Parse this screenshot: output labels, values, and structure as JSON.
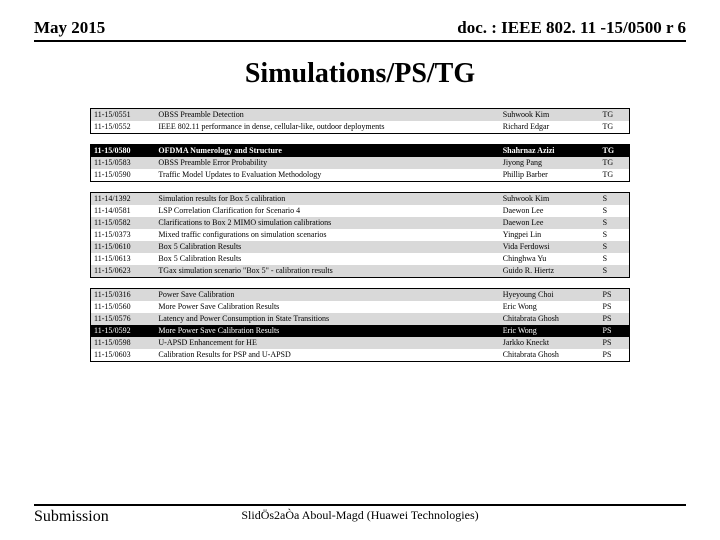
{
  "header": {
    "left": "May 2015",
    "right": "doc. : IEEE 802. 11 -15/0500 r 6"
  },
  "title": "Simulations/PS/TG",
  "footer": {
    "left": "Submission",
    "center": "SlidÖs2aÒa Aboul-Magd (Huawei Technologies)",
    "right": ""
  },
  "rowStyles": {
    "gray": {
      "bg": "#d9d9d9",
      "color": "#000000",
      "weight": "normal"
    },
    "white": {
      "bg": "#ffffff",
      "color": "#000000",
      "weight": "normal"
    },
    "blackBold": {
      "bg": "#000000",
      "color": "#ffffff",
      "weight": "bold"
    },
    "black": {
      "bg": "#000000",
      "color": "#ffffff",
      "weight": "normal"
    }
  },
  "tables": [
    {
      "rows": [
        {
          "style": "gray",
          "cells": [
            "11-15/0551",
            "OBSS Preamble Detection",
            "Suhwook Kim",
            "TG"
          ]
        },
        {
          "style": "white",
          "cells": [
            "11-15/0552",
            "IEEE 802.11 performance in dense, cellular-like, outdoor deployments",
            "Richard Edgar",
            "TG"
          ]
        }
      ]
    },
    {
      "rows": [
        {
          "style": "blackBold",
          "cells": [
            "11-15/0580",
            "OFDMA Numerology and Structure",
            "Shahrnaz Azizi",
            "TG"
          ]
        },
        {
          "style": "gray",
          "cells": [
            "11-15/0583",
            "OBSS Preamble Error Probability",
            "Jiyong Pang",
            "TG"
          ]
        },
        {
          "style": "white",
          "cells": [
            "11-15/0590",
            "Traffic Model Updates to Evaluation Methodology",
            "Phillip Barber",
            "TG"
          ]
        }
      ]
    },
    {
      "rows": [
        {
          "style": "gray",
          "cells": [
            "11-14/1392",
            "Simulation results for Box 5 calibration",
            "Suhwook Kim",
            "S"
          ]
        },
        {
          "style": "white",
          "cells": [
            "11-14/0581",
            "LSP Correlation Clarification for Scenario 4",
            "Daewon Lee",
            "S"
          ]
        },
        {
          "style": "gray",
          "cells": [
            "11-15/0582",
            "Clarifications to Box 2 MIMO simulation calibrations",
            "Daewon Lee",
            "S"
          ]
        },
        {
          "style": "white",
          "cells": [
            "11-15/0373",
            "Mixed traffic configurations on simulation scenarios",
            "Yingpei Lin",
            "S"
          ]
        },
        {
          "style": "gray",
          "cells": [
            "11-15/0610",
            "Box 5 Calibration Results",
            "Vida Ferdowsi",
            "S"
          ]
        },
        {
          "style": "white",
          "cells": [
            "11-15/0613",
            "Box 5 Calibration Results",
            "Chinghwa Yu",
            "S"
          ]
        },
        {
          "style": "gray",
          "cells": [
            "11-15/0623",
            "TGax simulation scenario \"Box 5\" - calibration results",
            "Guido R. Hiertz",
            "S"
          ]
        }
      ]
    },
    {
      "rows": [
        {
          "style": "gray",
          "cells": [
            "11-15/0316",
            "Power Save Calibration",
            "Hyeyoung Choi",
            "PS"
          ]
        },
        {
          "style": "white",
          "cells": [
            "11-15/0560",
            "More Power Save Calibration Results",
            "Eric Wong",
            "PS"
          ]
        },
        {
          "style": "gray",
          "cells": [
            "11-15/0576",
            "Latency and Power Consumption in State Transitions",
            "Chitabrata Ghosh",
            "PS"
          ]
        },
        {
          "style": "black",
          "cells": [
            "11-15/0592",
            "More Power Save Calibration Results",
            "Eric Wong",
            "PS"
          ]
        },
        {
          "style": "gray",
          "cells": [
            "11-15/0598",
            "U-APSD Enhancement for HE",
            "Jarkko Kneckt",
            "PS"
          ]
        },
        {
          "style": "white",
          "cells": [
            "11-15/0603",
            "Calibration Results for PSP and U-APSD",
            "Chitabrata Ghosh",
            "PS"
          ]
        }
      ]
    }
  ]
}
